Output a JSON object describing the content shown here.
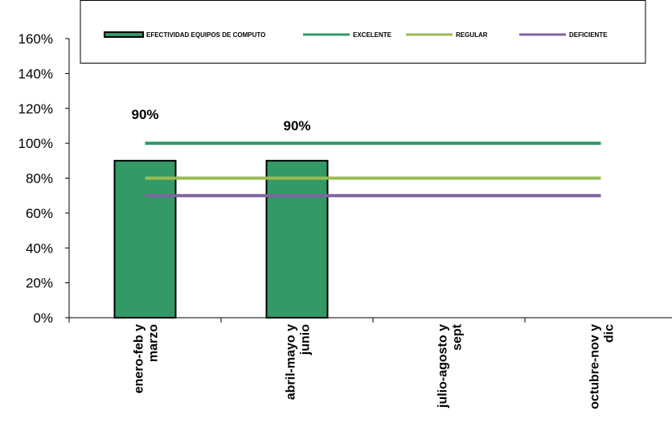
{
  "chart_data": {
    "type": "bar",
    "categories": [
      [
        "enero-feb y",
        "marzo"
      ],
      [
        "abril-mayo y",
        "junio"
      ],
      [
        "julio-agosto y",
        "sept"
      ],
      [
        "octubre-nov y",
        "dic"
      ]
    ],
    "ylim": [
      0,
      1.6
    ],
    "y_ticks": [
      0,
      0.2,
      0.4,
      0.6,
      0.8,
      1.0,
      1.2,
      1.4,
      1.6
    ],
    "y_tick_labels": [
      "0%",
      "20%",
      "40%",
      "60%",
      "80%",
      "100%",
      "120%",
      "140%",
      "160%"
    ],
    "series": [
      {
        "name": "EFECTIVIDAD EQUIPOS DE COMPUTO",
        "type": "bar",
        "color": "#339966",
        "values": [
          0.9,
          0.9,
          null,
          null
        ],
        "labels": [
          "90%",
          "90%",
          "",
          ""
        ]
      },
      {
        "name": "EXCELENTE",
        "type": "line",
        "color": "#339966",
        "values": [
          1.0,
          1.0,
          1.0,
          1.0
        ]
      },
      {
        "name": "REGULAR",
        "type": "line",
        "color": "#99bb55",
        "values": [
          0.8,
          0.8,
          0.8,
          0.8
        ]
      },
      {
        "name": "DEFICIENTE",
        "type": "line",
        "color": "#8064a2",
        "values": [
          0.7,
          0.7,
          0.7,
          0.7
        ]
      }
    ],
    "legend_position": "top",
    "grid": false
  }
}
